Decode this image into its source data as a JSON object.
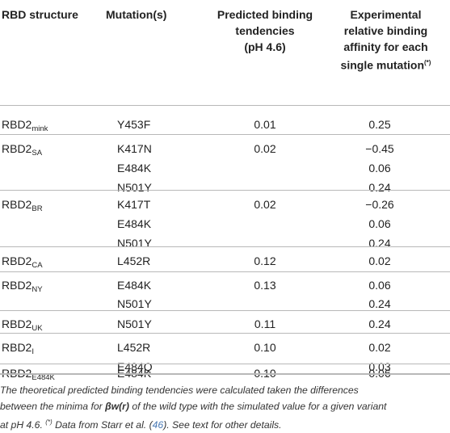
{
  "header": {
    "col1": "RBD structure",
    "col2": "Mutation(s)",
    "col3_lines": [
      "Predicted binding",
      "tendencies",
      "(pH 4.6)"
    ],
    "col4_lines": [
      "Experimental",
      "relative binding",
      "affinity for each",
      "single mutation"
    ],
    "col4_note": "(*)"
  },
  "rows": [
    {
      "base": "RBD2",
      "sub": "mink",
      "mutations": [
        "Y453F"
      ],
      "predicted": "0.01",
      "experimental": [
        "0.25"
      ]
    },
    {
      "base": "RBD2",
      "sub": "SA",
      "mutations": [
        "K417N",
        "E484K",
        "N501Y"
      ],
      "predicted": "0.02",
      "experimental": [
        "−0.45",
        "0.06",
        "0.24"
      ]
    },
    {
      "base": "RBD2",
      "sub": "BR",
      "mutations": [
        "K417T",
        "E484K",
        "N501Y"
      ],
      "predicted": "0.02",
      "experimental": [
        "−0.26",
        "0.06",
        "0.24"
      ]
    },
    {
      "base": "RBD2",
      "sub": "CA",
      "mutations": [
        "L452R"
      ],
      "predicted": "0.12",
      "experimental": [
        "0.02"
      ]
    },
    {
      "base": "RBD2",
      "sub": "NY",
      "mutations": [
        "E484K",
        "N501Y"
      ],
      "predicted": "0.13",
      "experimental": [
        "0.06",
        "0.24"
      ]
    },
    {
      "base": "RBD2",
      "sub": "UK",
      "mutations": [
        "N501Y"
      ],
      "predicted": "0.11",
      "experimental": [
        "0.24"
      ]
    },
    {
      "base": "RBD2",
      "sub": "I",
      "mutations": [
        "L452R",
        "E484Q"
      ],
      "predicted": "0.10",
      "experimental": [
        "0.02",
        "0.03"
      ]
    },
    {
      "base": "RBD2",
      "sub": "E484K",
      "mutations": [
        "E484K"
      ],
      "predicted": "0.10",
      "experimental": [
        "0.06"
      ]
    }
  ],
  "footnote": {
    "part1": "The theoretical predicted binding tendencies were calculated taken the differences",
    "part2a": "between the minima for ",
    "beta": "βw(r)",
    "part2b": " of the wild type with the simulated value for a given variant",
    "part3a": "at pH 4.6. ",
    "note_mark": "(*)",
    "part3b": " Data from Starr et al. (",
    "ref": "46",
    "part3c": "). See text for other details."
  }
}
